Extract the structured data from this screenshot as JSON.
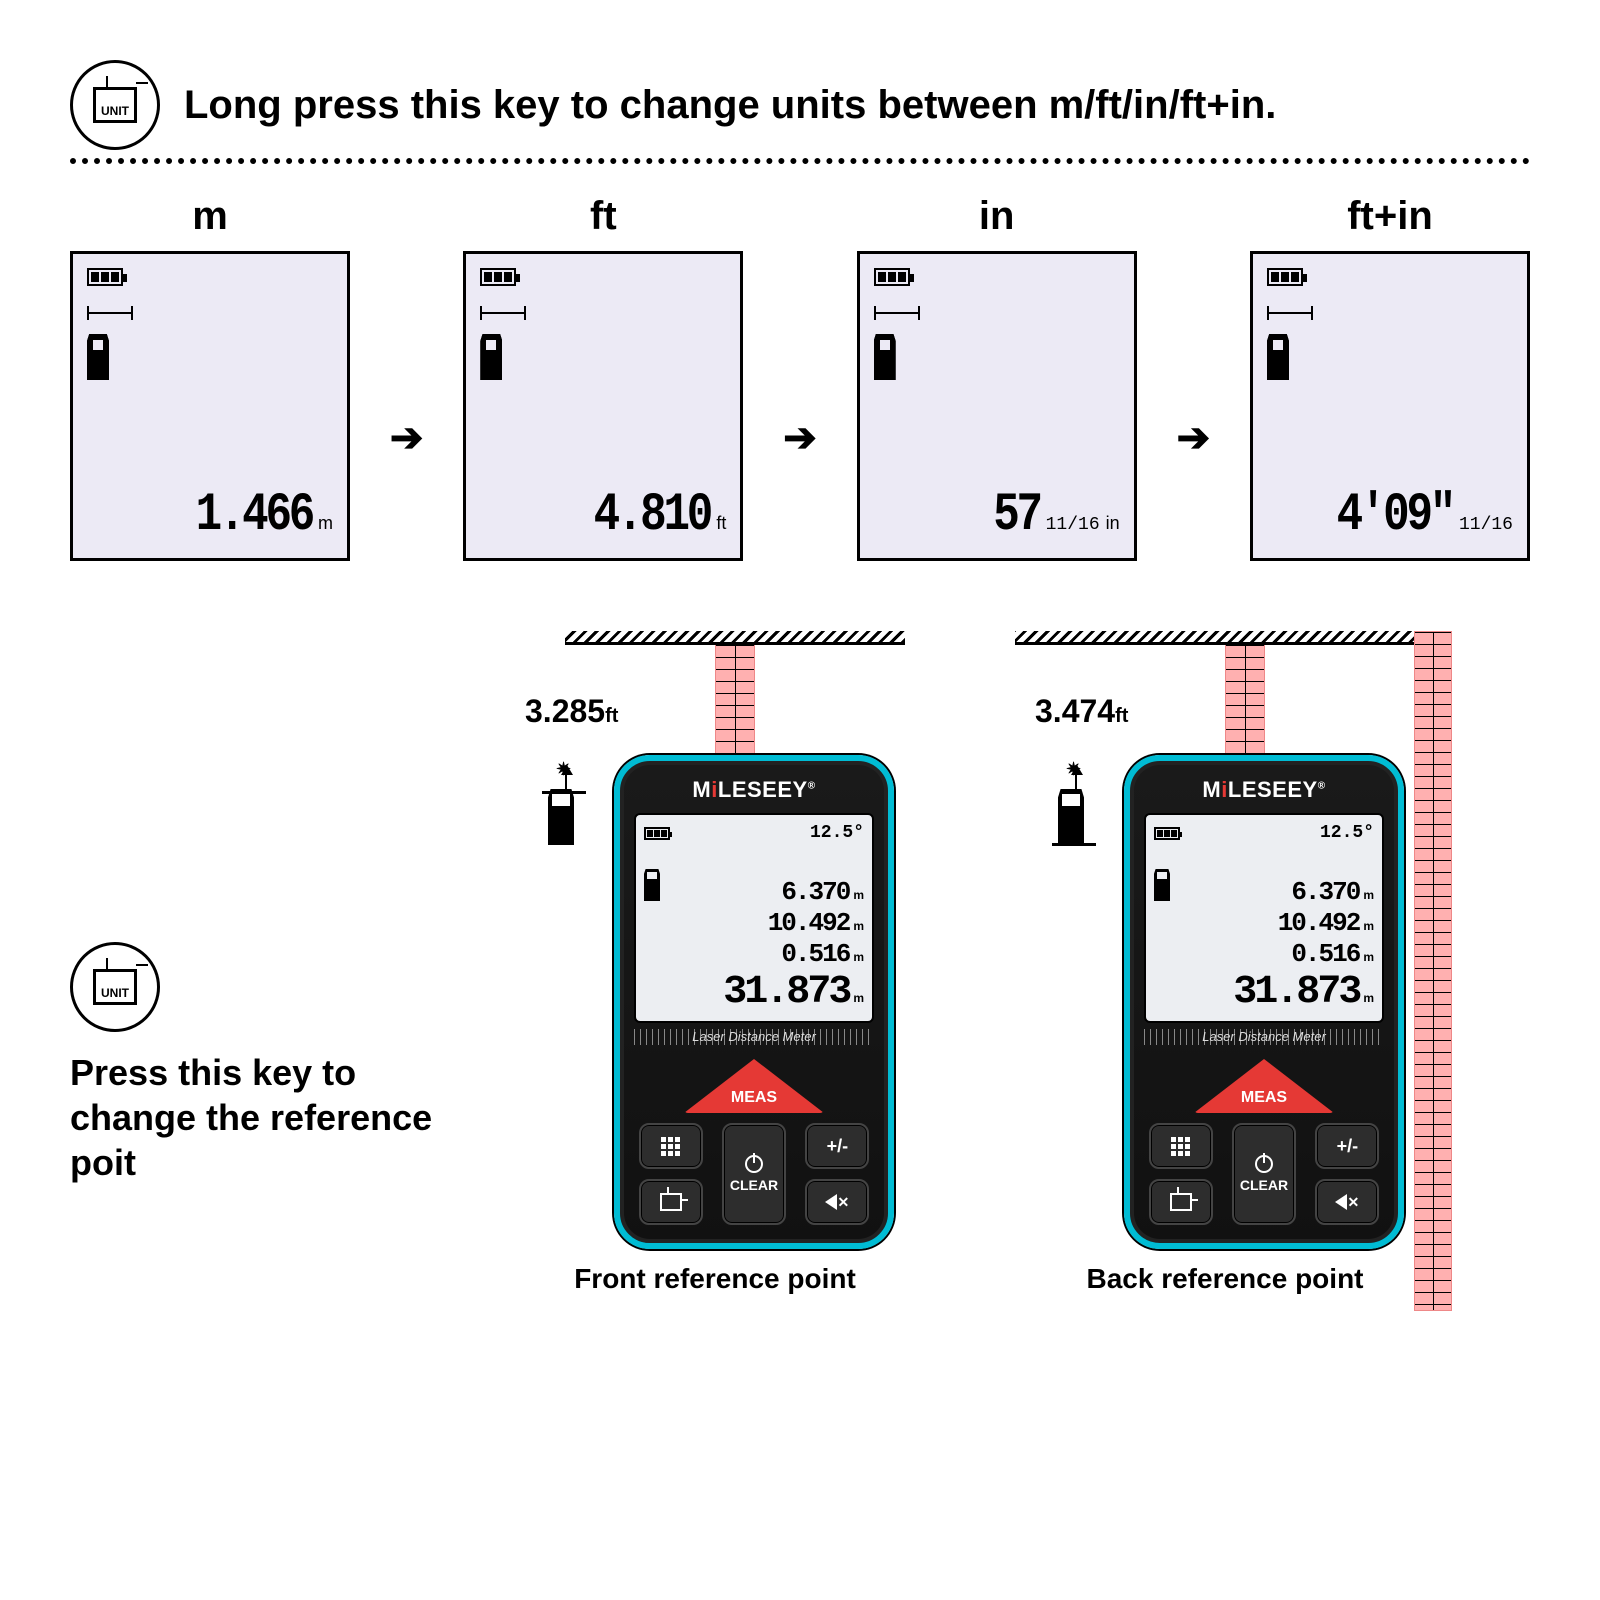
{
  "headline": "Long press this key to change units between m/ft/in/ft+in.",
  "unit_button_label": "UNIT",
  "unit_screens": [
    {
      "label": "m",
      "digits": "1.466",
      "unit": "m",
      "frac": ""
    },
    {
      "label": "ft",
      "digits": "4.810",
      "unit": "ft",
      "frac": ""
    },
    {
      "label": "in",
      "digits": "57",
      "unit": "in",
      "frac": "11/16"
    },
    {
      "label": "ft+in",
      "digits": "4'09\"",
      "unit": "",
      "frac": "11/16"
    }
  ],
  "press_caption": "Press this key to change the reference poit",
  "brand": "MiLESEEY",
  "device_subtitle": "Laser Distance Meter",
  "device": {
    "angle": "12.5°",
    "rows": [
      "6.370",
      "10.492",
      "0.516",
      "31.873"
    ],
    "row_unit": "m"
  },
  "keys": {
    "meas": "MEAS",
    "plusminus": "+/-",
    "clear": "CLEAR"
  },
  "front": {
    "distance": "3.285",
    "unit": "ft",
    "caption": "Front reference point"
  },
  "back": {
    "distance": "3.474",
    "unit": "ft",
    "caption": "Back reference point"
  },
  "colors": {
    "lcd_bg": "#eceaf5",
    "device_accent": "#00bcd4",
    "meas_red": "#e53935",
    "beam_pink": "#ffb0b0"
  }
}
